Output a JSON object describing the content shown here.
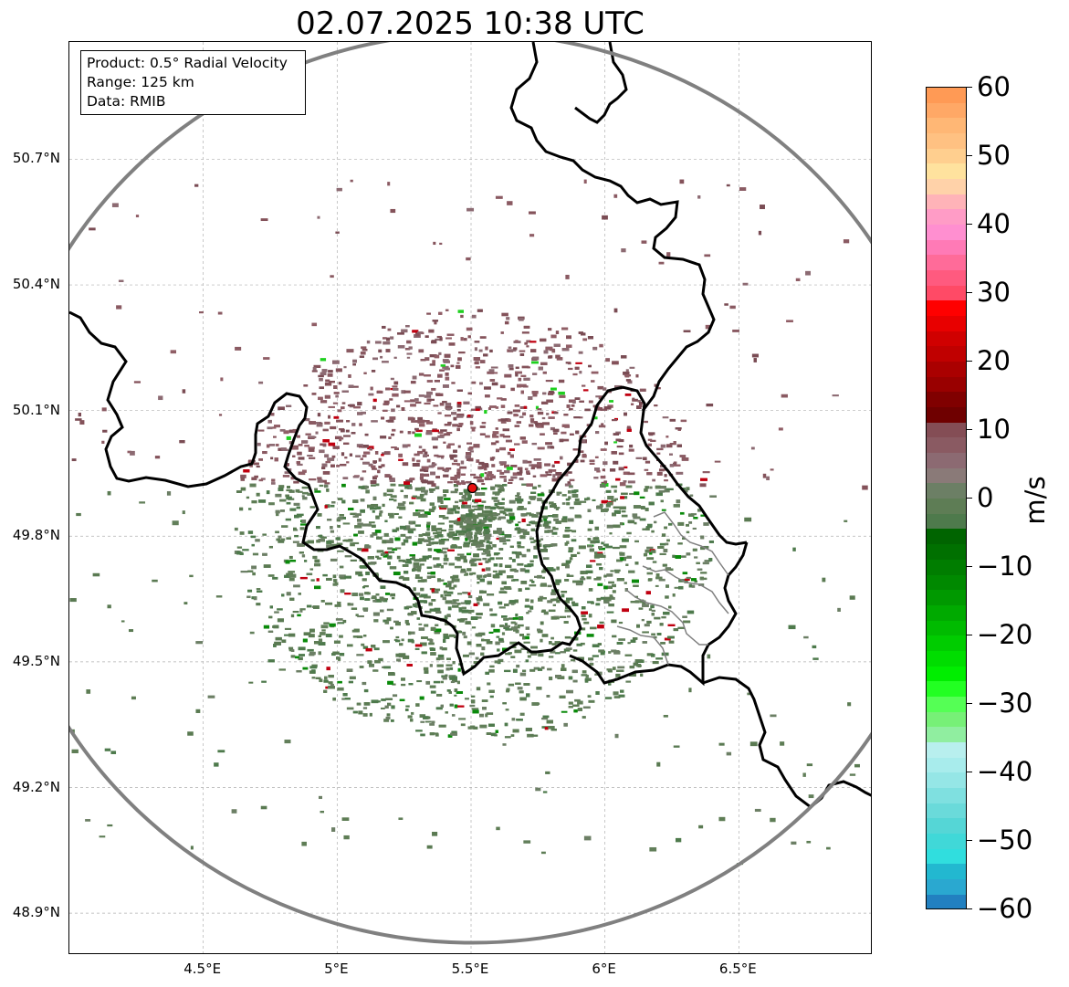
{
  "title": "02.07.2025 10:38 UTC",
  "info_box": {
    "product": "Product: 0.5° Radial Velocity",
    "range": "Range: 125 km",
    "data": "Data: RMIB"
  },
  "map": {
    "lon_range": [
      4.0,
      7.0
    ],
    "lat_range": [
      48.8,
      50.98
    ],
    "radar_site": {
      "lon": 5.505,
      "lat": 49.915,
      "color": "#e81010"
    },
    "range_ring_km": 125,
    "lat_ticks": [
      {
        "value": 48.9,
        "label": "48.9°N"
      },
      {
        "value": 49.2,
        "label": "49.2°N"
      },
      {
        "value": 49.5,
        "label": "49.5°N"
      },
      {
        "value": 49.8,
        "label": "49.8°N"
      },
      {
        "value": 50.1,
        "label": "50.1°N"
      },
      {
        "value": 50.4,
        "label": "50.4°N"
      },
      {
        "value": 50.7,
        "label": "50.7°N"
      }
    ],
    "lon_ticks": [
      {
        "value": 4.5,
        "label": "4.5°E"
      },
      {
        "value": 5.0,
        "label": "5°E"
      },
      {
        "value": 5.5,
        "label": "5.5°E"
      },
      {
        "value": 6.0,
        "label": "6°E"
      },
      {
        "value": 6.5,
        "label": "6.5°E"
      }
    ],
    "colors": {
      "border": "#000000",
      "secondary_border": "#808080",
      "range_ring": "#808080",
      "gridline": "#b0b0b0",
      "toward_radar": "#5e7d55",
      "away_from_radar": "#84525a",
      "strong_toward": "#0a8a0a",
      "strong_away": "#c00010"
    }
  },
  "colorbar": {
    "unit": "m/s",
    "vmin": -60,
    "vmax": 60,
    "ticks": [
      {
        "value": 60,
        "label": "60"
      },
      {
        "value": 50,
        "label": "50"
      },
      {
        "value": 40,
        "label": "40"
      },
      {
        "value": 30,
        "label": "30"
      },
      {
        "value": 20,
        "label": "20"
      },
      {
        "value": 10,
        "label": "10"
      },
      {
        "value": 0,
        "label": "0"
      },
      {
        "value": -10,
        "label": "−10"
      },
      {
        "value": -20,
        "label": "−20"
      },
      {
        "value": -30,
        "label": "−30"
      },
      {
        "value": -40,
        "label": "−40"
      },
      {
        "value": -50,
        "label": "−50"
      },
      {
        "value": -60,
        "label": "−60"
      }
    ],
    "colors_top_to_bottom": [
      "#ff9a55",
      "#ffa866",
      "#ffb775",
      "#ffc182",
      "#ffcf8f",
      "#ffe29e",
      "#ffd2a9",
      "#ffb3b8",
      "#ff9cc6",
      "#ff8fd0",
      "#ff7ab6",
      "#ff6b99",
      "#ff5a7f",
      "#ff4a66",
      "#ff0000",
      "#e80000",
      "#d00000",
      "#c00000",
      "#aa0000",
      "#990000",
      "#800000",
      "#6f0000",
      "#844d55",
      "#8a5a62",
      "#8c6a72",
      "#8a7a78",
      "#6c7f65",
      "#5e7d55",
      "#4e7a4c",
      "#006400",
      "#007000",
      "#007d00",
      "#008900",
      "#009900",
      "#00aa00",
      "#00bb00",
      "#00cc00",
      "#00dd00",
      "#00ee00",
      "#22ff22",
      "#55ff55",
      "#77f077",
      "#90eea0",
      "#b8efee",
      "#a8ecec",
      "#95e6e6",
      "#7fe0e0",
      "#6adada",
      "#55d6d6",
      "#40d8d8",
      "#30dede",
      "#22b8d0",
      "#2aa8d0",
      "#2280c0"
    ]
  }
}
